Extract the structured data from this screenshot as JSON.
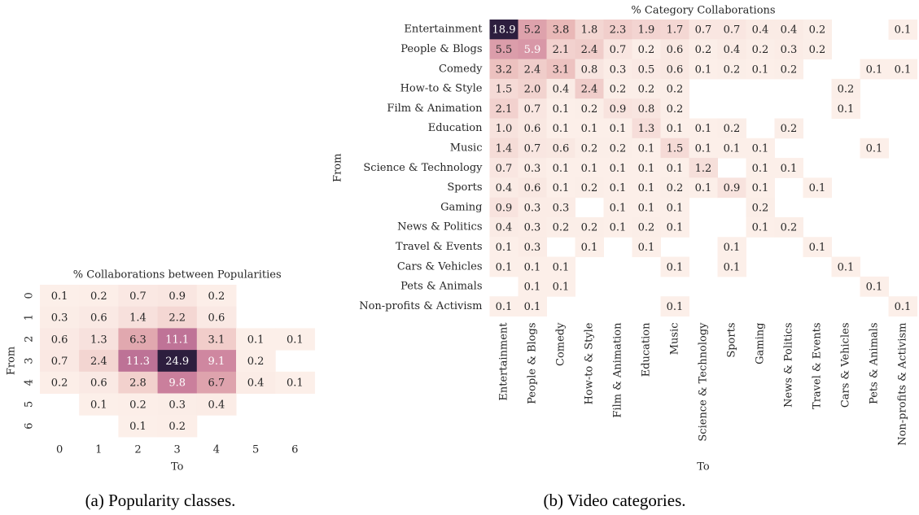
{
  "chart_data": [
    {
      "type": "heatmap",
      "title": "% Collaborations between Popularities",
      "xlabel": "To",
      "ylabel": "From",
      "caption": "(a) Popularity classes.",
      "xcategories": [
        "0",
        "1",
        "2",
        "3",
        "4",
        "5",
        "6"
      ],
      "ycategories": [
        "0",
        "1",
        "2",
        "3",
        "4",
        "5",
        "6"
      ],
      "cmap": [
        "#fcefe9",
        "#e9b7b6",
        "#c97c9b",
        "#9c5488",
        "#5f336a",
        "#2d1e3e"
      ],
      "values": [
        [
          0.1,
          0.2,
          0.7,
          0.9,
          0.2,
          null,
          null
        ],
        [
          0.3,
          0.6,
          1.4,
          2.2,
          0.6,
          null,
          null
        ],
        [
          0.6,
          1.3,
          6.3,
          11.1,
          3.1,
          0.1,
          0.1
        ],
        [
          0.7,
          2.4,
          11.3,
          24.9,
          9.1,
          0.2,
          null
        ],
        [
          0.2,
          0.6,
          2.8,
          9.8,
          6.7,
          0.4,
          0.1
        ],
        [
          null,
          0.1,
          0.2,
          0.3,
          0.4,
          null,
          null
        ],
        [
          null,
          null,
          0.1,
          0.2,
          null,
          null,
          null
        ]
      ]
    },
    {
      "type": "heatmap",
      "title": "% Category Collaborations",
      "xlabel": "To",
      "ylabel": "From",
      "caption": "(b) Video categories.",
      "xcategories": [
        "Entertainment",
        "People & Blogs",
        "Comedy",
        "How-to & Style",
        "Film & Animation",
        "Education",
        "Music",
        "Science & Technology",
        "Sports",
        "Gaming",
        "News & Politics",
        "Travel & Events",
        "Cars & Vehicles",
        "Pets & Animals",
        "Non-profits & Activism"
      ],
      "ycategories": [
        "Entertainment",
        "People & Blogs",
        "Comedy",
        "How-to & Style",
        "Film & Animation",
        "Education",
        "Music",
        "Science & Technology",
        "Sports",
        "Gaming",
        "News & Politics",
        "Travel & Events",
        "Cars & Vehicles",
        "Pets & Animals",
        "Non-profits & Activism"
      ],
      "cmap": [
        "#fcefe9",
        "#e9b7b6",
        "#c97c9b",
        "#9c5488",
        "#5f336a",
        "#2d1e3e"
      ],
      "values": [
        [
          18.9,
          5.2,
          3.8,
          1.8,
          2.3,
          1.9,
          1.7,
          0.7,
          0.7,
          0.4,
          0.4,
          0.2,
          null,
          null,
          0.1
        ],
        [
          5.5,
          5.9,
          2.1,
          2.4,
          0.7,
          0.2,
          0.6,
          0.2,
          0.4,
          0.2,
          0.3,
          0.2,
          null,
          null,
          null
        ],
        [
          3.2,
          2.4,
          3.1,
          0.8,
          0.3,
          0.5,
          0.6,
          0.1,
          0.2,
          0.1,
          0.2,
          null,
          null,
          0.1,
          0.1
        ],
        [
          1.5,
          2.0,
          0.4,
          2.4,
          0.2,
          0.2,
          0.2,
          null,
          null,
          null,
          null,
          null,
          0.2,
          null,
          null
        ],
        [
          2.1,
          0.7,
          0.1,
          0.2,
          0.9,
          0.8,
          0.2,
          null,
          null,
          null,
          null,
          null,
          0.1,
          null,
          null
        ],
        [
          1.0,
          0.6,
          0.1,
          0.1,
          0.1,
          1.3,
          0.1,
          0.1,
          0.2,
          null,
          0.2,
          null,
          null,
          null,
          null
        ],
        [
          1.4,
          0.7,
          0.6,
          0.2,
          0.2,
          0.1,
          1.5,
          0.1,
          0.1,
          0.1,
          null,
          null,
          null,
          0.1,
          null
        ],
        [
          0.7,
          0.3,
          0.1,
          0.1,
          0.1,
          0.1,
          0.1,
          1.2,
          null,
          0.1,
          0.1,
          null,
          null,
          null,
          null
        ],
        [
          0.4,
          0.6,
          0.1,
          0.2,
          0.1,
          0.1,
          0.2,
          0.1,
          0.9,
          0.1,
          null,
          0.1,
          null,
          null,
          null
        ],
        [
          0.9,
          0.3,
          0.3,
          null,
          0.1,
          0.1,
          0.1,
          null,
          null,
          0.2,
          null,
          null,
          null,
          null,
          null
        ],
        [
          0.4,
          0.3,
          0.2,
          0.2,
          0.1,
          0.2,
          0.1,
          null,
          null,
          0.1,
          0.2,
          null,
          null,
          null,
          null
        ],
        [
          0.1,
          0.3,
          null,
          0.1,
          null,
          0.1,
          null,
          null,
          0.1,
          null,
          null,
          0.1,
          null,
          null,
          null
        ],
        [
          0.1,
          0.1,
          0.1,
          null,
          null,
          null,
          0.1,
          null,
          0.1,
          null,
          null,
          null,
          0.1,
          null,
          null
        ],
        [
          null,
          0.1,
          0.1,
          null,
          null,
          null,
          null,
          null,
          null,
          null,
          null,
          null,
          null,
          0.1,
          null
        ],
        [
          0.1,
          0.1,
          null,
          null,
          null,
          null,
          0.1,
          null,
          null,
          null,
          null,
          null,
          null,
          null,
          0.1
        ]
      ],
      "value_labels": [
        [
          "18.9",
          "5.2",
          "3.8",
          "1.8",
          "2.3",
          "1.9",
          "1.7",
          "0.7",
          "0.7",
          "0.4",
          "0.4",
          "0.2",
          null,
          null,
          "0.1"
        ],
        [
          "5.5",
          "5.9",
          "2.1",
          "2.4",
          "0.7",
          "0.2",
          "0.6",
          "0.2",
          "0.4",
          "0.2",
          "0.3",
          "0.2",
          null,
          null,
          null
        ],
        [
          "3.2",
          "2.4",
          "3.1",
          "0.8",
          "0.3",
          "0.5",
          "0.6",
          "0.1",
          "0.2",
          "0.1",
          "0.2",
          null,
          null,
          "0.1",
          "0.1"
        ],
        [
          "1.5",
          "2.0",
          "0.4",
          "2.4",
          "0.2",
          "0.2",
          "0.2",
          null,
          null,
          null,
          null,
          null,
          "0.2",
          null,
          null
        ],
        [
          "2.1",
          "0.7",
          "0.1",
          "0.2",
          "0.9",
          "0.8",
          "0.2",
          null,
          null,
          null,
          null,
          null,
          "0.1",
          null,
          null
        ],
        [
          "1.0",
          "0.6",
          "0.1",
          "0.1",
          "0.1",
          "1.3",
          "0.1",
          "0.1",
          "0.2",
          null,
          "0.2",
          null,
          null,
          null,
          null
        ],
        [
          "1.4",
          "0.7",
          "0.6",
          "0.2",
          "0.2",
          "0.1",
          "1.5",
          "0.1",
          "0.1",
          "0.1",
          null,
          null,
          null,
          "0.1",
          null
        ],
        [
          "0.7",
          "0.3",
          "0.1",
          "0.1",
          "0.1",
          "0.1",
          "0.1",
          "1.2",
          null,
          "0.1",
          "0.1",
          null,
          null,
          null,
          null
        ],
        [
          "0.4",
          "0.6",
          "0.1",
          "0.2",
          "0.1",
          "0.1",
          "0.2",
          "0.1",
          "0.9",
          "0.1",
          null,
          "0.1",
          null,
          null,
          null
        ],
        [
          "0.9",
          "0.3",
          "0.3",
          null,
          "0.1",
          "0.1",
          "0.1",
          null,
          null,
          "0.2",
          null,
          null,
          null,
          null,
          null
        ],
        [
          "0.4",
          "0.3",
          "0.2",
          "0.2",
          "0.1",
          "0.2",
          "0.1",
          null,
          null,
          "0.1",
          "0.2",
          null,
          null,
          null,
          null
        ],
        [
          "0.1",
          "0.3",
          null,
          "0.1",
          null,
          "0.1",
          null,
          null,
          "0.1",
          null,
          null,
          "0.1",
          null,
          null,
          null
        ],
        [
          "0.1",
          "0.1",
          "0.1",
          null,
          null,
          null,
          "0.1",
          null,
          "0.1",
          null,
          null,
          null,
          "0.1",
          null,
          null
        ],
        [
          null,
          "0.1",
          "0.1",
          null,
          null,
          null,
          null,
          null,
          null,
          null,
          null,
          null,
          null,
          "0.1",
          null
        ],
        [
          "0.1",
          "0.1",
          null,
          null,
          null,
          null,
          "0.1",
          null,
          null,
          null,
          null,
          null,
          null,
          null,
          "0.1"
        ]
      ]
    }
  ]
}
